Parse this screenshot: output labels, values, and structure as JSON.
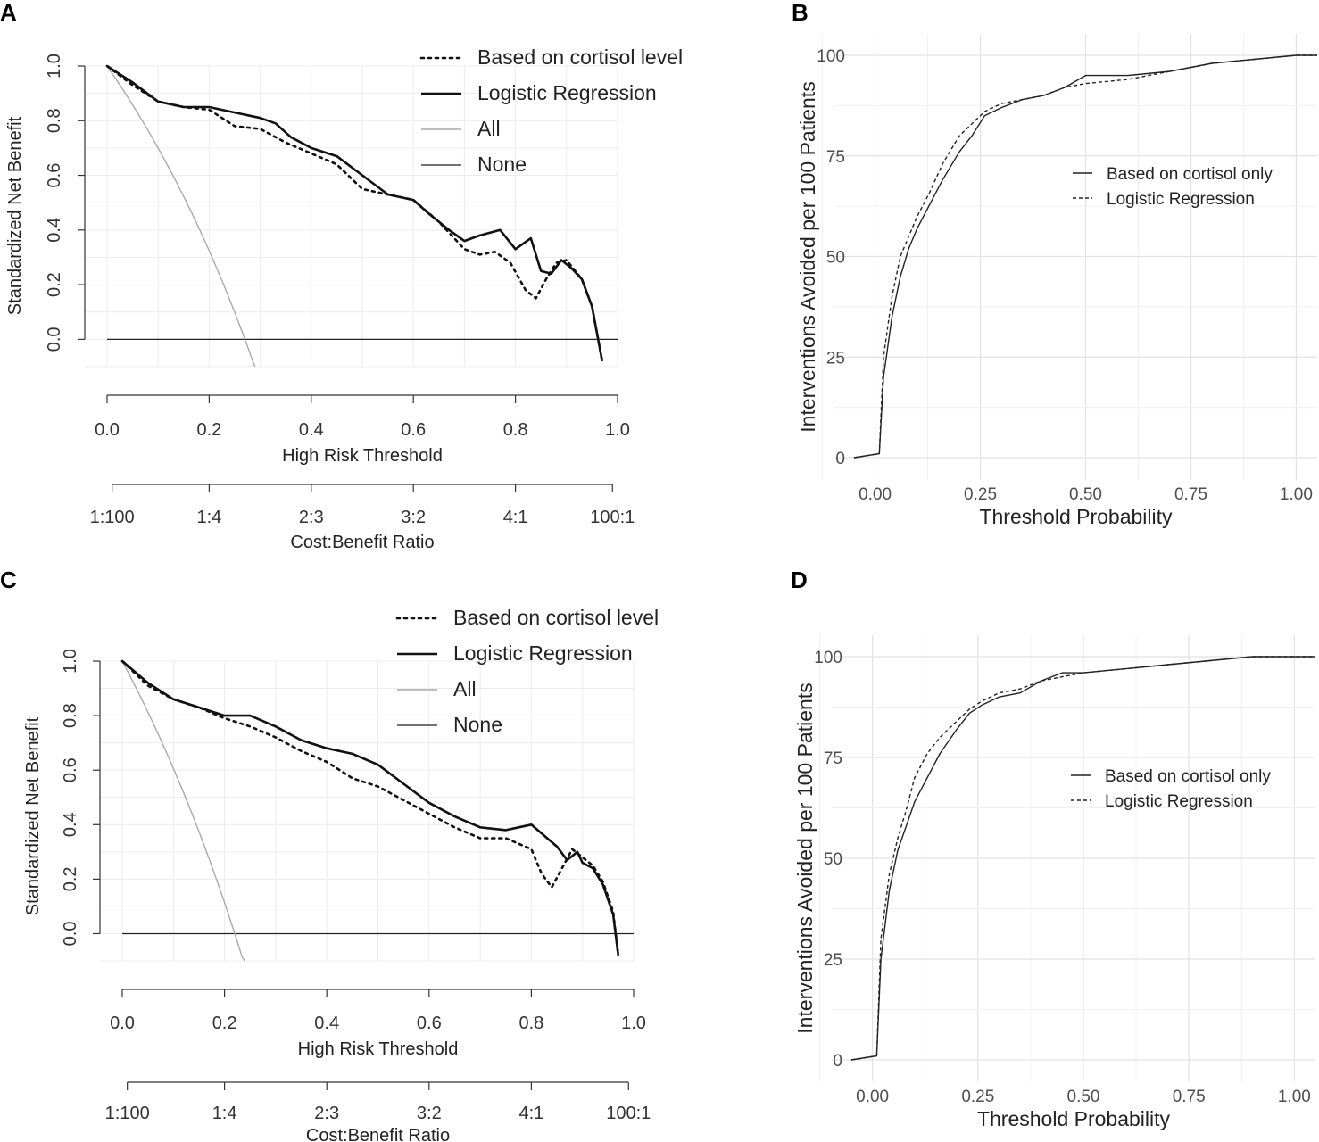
{
  "figure": {
    "panel_letters": [
      "A",
      "B",
      "C",
      "D"
    ]
  },
  "chart_data": [
    {
      "panel": "A",
      "type": "line",
      "xlabel": "High Risk Threshold",
      "ylabel": "Standardized Net Benefit",
      "xlim": [
        0,
        1
      ],
      "ylim": [
        -0.1,
        1.0
      ],
      "xticks": [
        0,
        0.2,
        0.4,
        0.6,
        0.8,
        1.0
      ],
      "xtick_labels": [
        "0.0",
        "0.2",
        "0.4",
        "0.6",
        "0.8",
        "1.0"
      ],
      "yticks": [
        0,
        0.2,
        0.4,
        0.6,
        0.8,
        1.0
      ],
      "ytick_labels": [
        "0.0",
        "0.2",
        "0.4",
        "0.6",
        "0.8",
        "1.0"
      ],
      "secondary_axis": {
        "label": "Cost:Benefit Ratio",
        "ticks": [
          0.0099,
          0.2,
          0.4,
          0.6,
          0.8,
          0.99
        ],
        "tick_labels": [
          "1:100",
          "1:4",
          "2:3",
          "3:2",
          "4:1",
          "100:1"
        ]
      },
      "legend": [
        "Based on cortisol level",
        "Logistic Regression",
        "All",
        "None"
      ],
      "series": [
        {
          "name": "Based on cortisol level",
          "style": "dotted",
          "x": [
            0,
            0.05,
            0.1,
            0.15,
            0.2,
            0.25,
            0.3,
            0.35,
            0.4,
            0.45,
            0.5,
            0.55,
            0.6,
            0.65,
            0.7,
            0.73,
            0.76,
            0.79,
            0.82,
            0.84,
            0.86,
            0.88,
            0.9,
            0.93,
            0.95,
            0.96,
            0.97
          ],
          "y": [
            1.0,
            0.93,
            0.87,
            0.85,
            0.84,
            0.78,
            0.77,
            0.72,
            0.68,
            0.64,
            0.55,
            0.53,
            0.51,
            0.43,
            0.33,
            0.31,
            0.32,
            0.28,
            0.18,
            0.15,
            0.22,
            0.28,
            0.29,
            0.22,
            0.12,
            0.02,
            -0.08
          ]
        },
        {
          "name": "Logistic Regression",
          "style": "solid-bold",
          "x": [
            0,
            0.05,
            0.1,
            0.15,
            0.2,
            0.25,
            0.3,
            0.33,
            0.36,
            0.4,
            0.45,
            0.5,
            0.55,
            0.6,
            0.63,
            0.67,
            0.7,
            0.73,
            0.77,
            0.8,
            0.83,
            0.85,
            0.87,
            0.89,
            0.91,
            0.93,
            0.95,
            0.96,
            0.97
          ],
          "y": [
            1.0,
            0.94,
            0.87,
            0.85,
            0.85,
            0.83,
            0.81,
            0.79,
            0.74,
            0.7,
            0.67,
            0.6,
            0.53,
            0.51,
            0.46,
            0.4,
            0.36,
            0.38,
            0.4,
            0.33,
            0.37,
            0.25,
            0.24,
            0.29,
            0.26,
            0.22,
            0.12,
            0.02,
            -0.08
          ]
        },
        {
          "name": "All",
          "style": "gray",
          "curve": "treat_all",
          "prevalence": 0.27
        },
        {
          "name": "None",
          "style": "thin",
          "x": [
            0,
            1
          ],
          "y": [
            0,
            0
          ]
        }
      ]
    },
    {
      "panel": "B",
      "type": "line",
      "xlabel": "Threshold Probability",
      "ylabel": "Interventions Avoided per 100 Patients",
      "xlim": [
        -0.05,
        1.05
      ],
      "ylim": [
        0,
        100
      ],
      "xticks": [
        0,
        0.25,
        0.5,
        0.75,
        1.0
      ],
      "xtick_labels": [
        "0.00",
        "0.25",
        "0.50",
        "0.75",
        "1.00"
      ],
      "yticks": [
        0,
        25,
        50,
        75,
        100
      ],
      "ytick_labels": [
        "0",
        "25",
        "50",
        "75",
        "100"
      ],
      "legend": [
        "Based on cortisol only",
        "Logistic Regression"
      ],
      "series": [
        {
          "name": "Based on cortisol only",
          "style": "solid",
          "x": [
            -0.05,
            0.01,
            0.02,
            0.04,
            0.06,
            0.08,
            0.1,
            0.13,
            0.16,
            0.2,
            0.23,
            0.26,
            0.3,
            0.35,
            0.4,
            0.45,
            0.5,
            0.6,
            0.7,
            0.8,
            0.9,
            1.0,
            1.05
          ],
          "y": [
            0,
            1,
            20,
            35,
            45,
            52,
            57,
            63,
            69,
            76,
            80,
            85,
            87,
            89,
            90,
            92,
            95,
            95,
            96,
            98,
            99,
            100,
            100
          ]
        },
        {
          "name": "Logistic Regression",
          "style": "dashed",
          "x": [
            -0.05,
            0.01,
            0.02,
            0.04,
            0.06,
            0.08,
            0.1,
            0.13,
            0.16,
            0.2,
            0.23,
            0.26,
            0.3,
            0.35,
            0.4,
            0.45,
            0.5,
            0.6,
            0.7,
            0.8,
            0.9,
            1.0,
            1.05
          ],
          "y": [
            0,
            1,
            25,
            40,
            50,
            55,
            60,
            66,
            73,
            80,
            83,
            86,
            88,
            89,
            90,
            92,
            93,
            94,
            96,
            98,
            99,
            100,
            100
          ]
        }
      ]
    },
    {
      "panel": "C",
      "type": "line",
      "xlabel": "High Risk Threshold",
      "ylabel": "Standardized Net Benefit",
      "xlim": [
        0,
        1
      ],
      "ylim": [
        -0.1,
        1.0
      ],
      "xticks": [
        0,
        0.2,
        0.4,
        0.6,
        0.8,
        1.0
      ],
      "xtick_labels": [
        "0.0",
        "0.2",
        "0.4",
        "0.6",
        "0.8",
        "1.0"
      ],
      "yticks": [
        0,
        0.2,
        0.4,
        0.6,
        0.8,
        1.0
      ],
      "ytick_labels": [
        "0.0",
        "0.2",
        "0.4",
        "0.6",
        "0.8",
        "1.0"
      ],
      "secondary_axis": {
        "label": "Cost:Benefit Ratio",
        "ticks": [
          0.0099,
          0.2,
          0.4,
          0.6,
          0.8,
          0.99
        ],
        "tick_labels": [
          "1:100",
          "1:4",
          "2:3",
          "3:2",
          "4:1",
          "100:1"
        ]
      },
      "legend": [
        "Based on cortisol level",
        "Logistic Regression",
        "All",
        "None"
      ],
      "series": [
        {
          "name": "Based on cortisol level",
          "style": "dotted",
          "x": [
            0,
            0.05,
            0.1,
            0.15,
            0.2,
            0.25,
            0.3,
            0.35,
            0.4,
            0.45,
            0.5,
            0.55,
            0.6,
            0.65,
            0.7,
            0.75,
            0.8,
            0.82,
            0.84,
            0.86,
            0.88,
            0.9,
            0.92,
            0.94,
            0.96,
            0.97
          ],
          "y": [
            1.0,
            0.91,
            0.86,
            0.83,
            0.79,
            0.76,
            0.72,
            0.67,
            0.63,
            0.57,
            0.54,
            0.49,
            0.44,
            0.39,
            0.35,
            0.35,
            0.31,
            0.22,
            0.17,
            0.24,
            0.31,
            0.28,
            0.25,
            0.19,
            0.08,
            -0.08
          ]
        },
        {
          "name": "Logistic Regression",
          "style": "solid-bold",
          "x": [
            0,
            0.05,
            0.1,
            0.15,
            0.2,
            0.25,
            0.3,
            0.35,
            0.4,
            0.45,
            0.5,
            0.55,
            0.6,
            0.65,
            0.7,
            0.75,
            0.8,
            0.85,
            0.87,
            0.89,
            0.9,
            0.92,
            0.94,
            0.96,
            0.97
          ],
          "y": [
            1.0,
            0.92,
            0.86,
            0.83,
            0.8,
            0.8,
            0.76,
            0.71,
            0.68,
            0.66,
            0.62,
            0.55,
            0.48,
            0.43,
            0.39,
            0.38,
            0.4,
            0.32,
            0.27,
            0.3,
            0.26,
            0.24,
            0.18,
            0.07,
            -0.08
          ]
        },
        {
          "name": "All",
          "style": "gray",
          "curve": "treat_all",
          "prevalence": 0.22
        },
        {
          "name": "None",
          "style": "thin",
          "x": [
            0,
            1
          ],
          "y": [
            0,
            0
          ]
        }
      ]
    },
    {
      "panel": "D",
      "type": "line",
      "xlabel": "Threshold Probability",
      "ylabel": "Interventions Avoided per 100 Patients",
      "xlim": [
        -0.05,
        1.05
      ],
      "ylim": [
        0,
        100
      ],
      "xticks": [
        0,
        0.25,
        0.5,
        0.75,
        1.0
      ],
      "xtick_labels": [
        "0.00",
        "0.25",
        "0.50",
        "0.75",
        "1.00"
      ],
      "yticks": [
        0,
        25,
        50,
        75,
        100
      ],
      "ytick_labels": [
        "0",
        "25",
        "50",
        "75",
        "100"
      ],
      "legend": [
        "Based on cortisol only",
        "Logistic Regression"
      ],
      "series": [
        {
          "name": "Based on cortisol only",
          "style": "solid",
          "x": [
            -0.05,
            0.01,
            0.02,
            0.04,
            0.06,
            0.08,
            0.1,
            0.13,
            0.16,
            0.2,
            0.23,
            0.26,
            0.3,
            0.35,
            0.4,
            0.45,
            0.5,
            0.6,
            0.7,
            0.8,
            0.9,
            1.0,
            1.05
          ],
          "y": [
            0,
            1,
            25,
            42,
            52,
            58,
            64,
            70,
            76,
            82,
            86,
            88,
            90,
            91,
            94,
            96,
            96,
            97,
            98,
            99,
            100,
            100,
            100
          ]
        },
        {
          "name": "Logistic Regression",
          "style": "dashed",
          "x": [
            -0.05,
            0.01,
            0.02,
            0.04,
            0.06,
            0.08,
            0.1,
            0.13,
            0.16,
            0.2,
            0.23,
            0.26,
            0.3,
            0.35,
            0.4,
            0.45,
            0.5,
            0.6,
            0.7,
            0.8,
            0.9,
            1.0,
            1.05
          ],
          "y": [
            0,
            1,
            30,
            46,
            55,
            62,
            70,
            76,
            80,
            84,
            87,
            89,
            91,
            92,
            94,
            95,
            96,
            97,
            98,
            99,
            100,
            100,
            100
          ]
        }
      ]
    }
  ]
}
